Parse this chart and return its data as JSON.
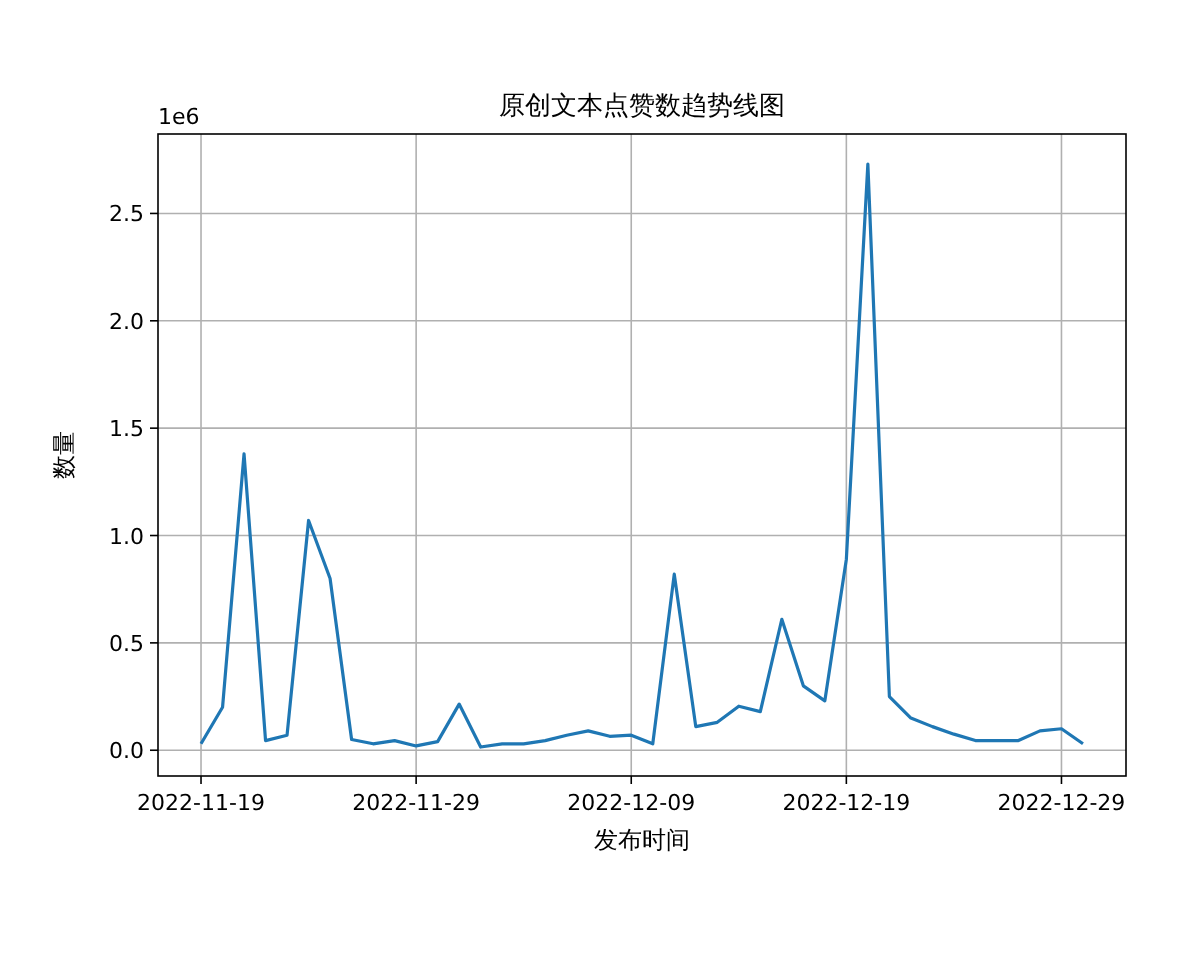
{
  "chart_data": {
    "type": "line",
    "title": "原创文本点赞数趋势线图",
    "xlabel": "发布时间",
    "ylabel": "数量",
    "annotations": [
      "1e6"
    ],
    "x": [
      "2022-11-19",
      "2022-11-20",
      "2022-11-21",
      "2022-11-22",
      "2022-11-23",
      "2022-11-24",
      "2022-11-25",
      "2022-11-26",
      "2022-11-27",
      "2022-11-28",
      "2022-11-29",
      "2022-11-30",
      "2022-12-01",
      "2022-12-02",
      "2022-12-03",
      "2022-12-04",
      "2022-12-05",
      "2022-12-06",
      "2022-12-07",
      "2022-12-08",
      "2022-12-09",
      "2022-12-10",
      "2022-12-11",
      "2022-12-12",
      "2022-12-13",
      "2022-12-14",
      "2022-12-15",
      "2022-12-16",
      "2022-12-17",
      "2022-12-18",
      "2022-12-19",
      "2022-12-20",
      "2022-12-21",
      "2022-12-22",
      "2022-12-23",
      "2022-12-24",
      "2022-12-25",
      "2022-12-26",
      "2022-12-27",
      "2022-12-28",
      "2022-12-29",
      "2022-12-30"
    ],
    "series": [
      {
        "color": "#1f77b4",
        "values": [
          0.03,
          0.2,
          1.38,
          0.045,
          0.07,
          1.07,
          0.8,
          0.05,
          0.03,
          0.045,
          0.02,
          0.04,
          0.215,
          0.015,
          0.03,
          0.03,
          0.045,
          0.07,
          0.09,
          0.065,
          0.07,
          0.03,
          0.82,
          0.11,
          0.13,
          0.205,
          0.18,
          0.61,
          0.3,
          0.23,
          0.89,
          2.73,
          0.25,
          0.15,
          0.11,
          0.075,
          0.045,
          0.045,
          0.045,
          0.09,
          0.1,
          0.03
        ]
      }
    ],
    "xlim": [
      "2022-11-17",
      "2023-01-01"
    ],
    "ylim": [
      -0.12,
      2.87
    ],
    "xticks": [
      "2022-11-19",
      "2022-11-29",
      "2022-12-09",
      "2022-12-19",
      "2022-12-29"
    ],
    "yticks": [
      {
        "value": 0,
        "label": "0.0"
      },
      {
        "value": 0.5,
        "label": "0.5"
      },
      {
        "value": 1,
        "label": "1.0"
      },
      {
        "value": 1.5,
        "label": "1.5"
      },
      {
        "value": 2,
        "label": "2.0"
      },
      {
        "value": 2.5,
        "label": "2.5"
      }
    ],
    "grid": true
  }
}
